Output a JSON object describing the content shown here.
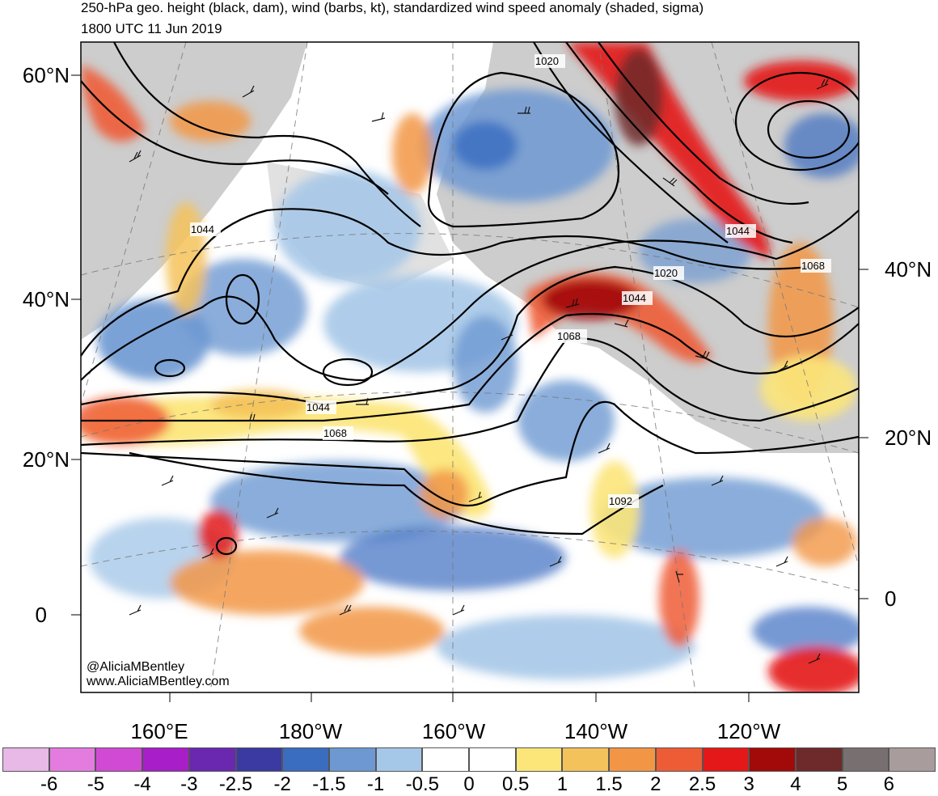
{
  "title": "250-hPa geo. height (black, dam), wind (barbs, kt), standardized wind speed anomaly (shaded, sigma)",
  "valid_time": "1800 UTC 11 Jun 2019",
  "lat_labels_left": [
    {
      "text": "60°N",
      "y": 60
    },
    {
      "text": "40°N",
      "y": 40
    },
    {
      "text": "20°N",
      "y": 20
    },
    {
      "text": "0",
      "y": 0
    }
  ],
  "lat_labels_right": [
    {
      "text": "40°N",
      "y": 40
    },
    {
      "text": "20°N",
      "y": 20
    },
    {
      "text": "0",
      "y": 0
    }
  ],
  "lon_labels": [
    "160°E",
    "180°W",
    "160°W",
    "140°W",
    "120°W"
  ],
  "contour_labels": [
    "1020",
    "1044",
    "1044",
    "1020",
    "1044",
    "1068",
    "1068",
    "1044",
    "1068",
    "1092"
  ],
  "credits": {
    "handle": "@AliciaMBentley",
    "site": "www.AliciaMBentley.com"
  },
  "colorbar": {
    "labels": [
      "-6",
      "-5",
      "-4",
      "-3",
      "-2.5",
      "-2",
      "-1.5",
      "-1",
      "-0.5",
      "0",
      "0.5",
      "1",
      "1.5",
      "2",
      "2.5",
      "3",
      "4",
      "5",
      "6"
    ],
    "colors": [
      "#e8b8e6",
      "#e47ce0",
      "#d14ad4",
      "#a81ec8",
      "#6a28b0",
      "#3a3aa2",
      "#3a6cc0",
      "#6d98d2",
      "#a6c8e8",
      "#ffffff",
      "#ffffff",
      "#fce67a",
      "#f4c25a",
      "#f29646",
      "#ee5c36",
      "#e41818",
      "#a20a0a",
      "#6e2a2a",
      "#787070",
      "#a89c9c"
    ]
  }
}
